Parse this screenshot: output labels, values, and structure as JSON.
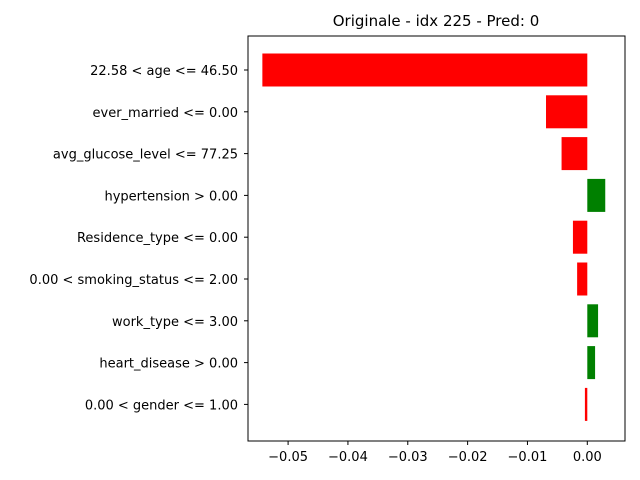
{
  "chart_data": {
    "type": "bar",
    "orientation": "horizontal",
    "title": "Originale - idx 225 - Pred: 0",
    "xlabel": "",
    "ylabel": "",
    "xlim": [
      -0.0567,
      0.0063
    ],
    "grid": false,
    "legend": "none",
    "categories": [
      "22.58 < age <= 46.50",
      "ever_married <= 0.00",
      "avg_glucose_level <= 77.25",
      "hypertension > 0.00",
      "Residence_type <= 0.00",
      "0.00 < smoking_status <= 2.00",
      "work_type <= 3.00",
      "heart_disease > 0.00",
      "0.00 < gender <= 1.00"
    ],
    "values": [
      -0.0543,
      -0.0069,
      -0.0043,
      0.003,
      -0.0024,
      -0.0017,
      0.0018,
      0.0013,
      -0.0004
    ],
    "x_ticks": [
      -0.05,
      -0.04,
      -0.03,
      -0.02,
      -0.01,
      0.0
    ],
    "x_tick_labels": [
      "−0.05",
      "−0.04",
      "−0.03",
      "−0.02",
      "−0.01",
      "0.00"
    ],
    "colors": {
      "negative": "#ff0000",
      "positive": "#008000"
    }
  }
}
